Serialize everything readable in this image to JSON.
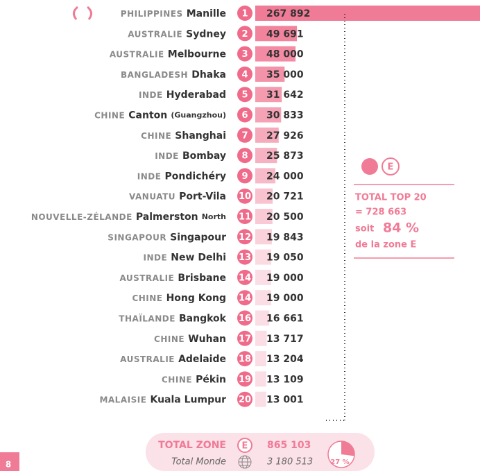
{
  "chart_data": {
    "type": "bar",
    "countries": [
      "PHILIPPINES",
      "AUSTRALIE",
      "AUSTRALIE",
      "BANGLADESH",
      "INDE",
      "CHINE",
      "CHINE",
      "INDE",
      "INDE",
      "VANUATU",
      "NOUVELLE-ZÉLANDE",
      "SINGAPOUR",
      "INDE",
      "AUSTRALIE",
      "CHINE",
      "THAÏLANDE",
      "CHINE",
      "AUSTRALIE",
      "CHINE",
      "MALAISIE"
    ],
    "categories": [
      "Manille",
      "Sydney",
      "Melbourne",
      "Dhaka",
      "Hyderabad",
      "Canton",
      "Shanghai",
      "Bombay",
      "Pondichéry",
      "Port-Vila",
      "Palmerston",
      "Singapour",
      "New Delhi",
      "Brisbane",
      "Hong Kong",
      "Bangkok",
      "Wuhan",
      "Adelaide",
      "Pékin",
      "Kuala Lumpur"
    ],
    "category_notes": [
      null,
      null,
      null,
      null,
      null,
      "(Guangzhou)",
      null,
      null,
      null,
      null,
      "North",
      null,
      null,
      null,
      null,
      null,
      null,
      null,
      null,
      null
    ],
    "ranks": [
      1,
      2,
      3,
      4,
      5,
      6,
      7,
      8,
      9,
      10,
      11,
      12,
      13,
      14,
      14,
      16,
      17,
      18,
      19,
      20
    ],
    "values": [
      267892,
      49691,
      48000,
      35000,
      31642,
      30833,
      27926,
      25873,
      24000,
      20721,
      20500,
      19843,
      19050,
      19000,
      19000,
      16661,
      13717,
      13204,
      13109,
      13001
    ],
    "value_labels": [
      "267 892",
      "49 691",
      "48 000",
      "35 000",
      "31 642",
      "30 833",
      "27 926",
      "25 873",
      "24 000",
      "20 721",
      "20 500",
      "19 843",
      "19 050",
      "19 000",
      "19 000",
      "16 661",
      "13 717",
      "13 204",
      "13 109",
      "13 001"
    ],
    "color": "#f07b96",
    "zone": "E",
    "summary": {
      "title": "TOTAL TOP 20",
      "total": "= 728 663",
      "share_prefix": "soit",
      "share": "84 %",
      "share_suffix": "de la zone E"
    },
    "footer": {
      "zone_label": "TOTAL ZONE",
      "zone_total": "865 103",
      "world_label": "Total Monde",
      "world_total": "3 180 513",
      "world_share": 27,
      "world_share_label": "27 %"
    },
    "page_number": "8"
  }
}
